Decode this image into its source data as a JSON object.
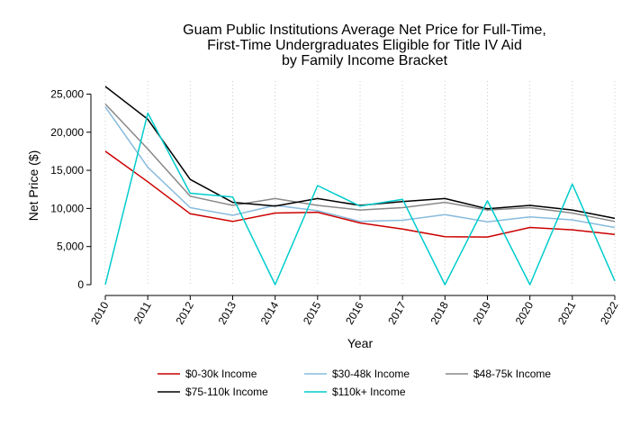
{
  "chart_data": {
    "type": "line",
    "title_lines": [
      "Guam Public Institutions Average Net Price for Full-Time,",
      "First-Time Undergraduates Eligible for Title IV Aid",
      "by Family Income Bracket"
    ],
    "xlabel": "Year",
    "ylabel": "Net Price ($)",
    "x": [
      "2010",
      "2011",
      "2012",
      "2013",
      "2014",
      "2015",
      "2016",
      "2017",
      "2018",
      "2019",
      "2020",
      "2021",
      "2022"
    ],
    "ylim": [
      0,
      26000
    ],
    "yticks": [
      0,
      5000,
      10000,
      15000,
      20000,
      25000
    ],
    "ytick_labels": [
      "0",
      "5,000",
      "10,000",
      "15,000",
      "20,000",
      "25,000"
    ],
    "grid": true,
    "legend_position": "bottom",
    "series": [
      {
        "name": "$0-30k Income",
        "color": "#cc0000",
        "values": [
          17500,
          13500,
          9300,
          8300,
          9400,
          9500,
          8100,
          7300,
          6300,
          6250,
          7500,
          7200,
          6600
        ]
      },
      {
        "name": "$30-48k Income",
        "color": "#88bbdd",
        "values": [
          23300,
          15400,
          10100,
          9100,
          10400,
          9700,
          8300,
          8450,
          9200,
          8250,
          8900,
          8500,
          7500
        ]
      },
      {
        "name": "$48-75k Income",
        "color": "#888888",
        "values": [
          23700,
          17800,
          11600,
          10400,
          11300,
          10400,
          9800,
          10100,
          10800,
          9800,
          10100,
          9400,
          8300
        ]
      },
      {
        "name": "$75-110k Income",
        "color": "#000000",
        "values": [
          26000,
          21700,
          13800,
          10800,
          10300,
          11300,
          10400,
          10900,
          11300,
          9950,
          10400,
          9800,
          8700
        ]
      },
      {
        "name": "$110k+ Income",
        "color": "#00cccc",
        "values": [
          0,
          22500,
          12000,
          11500,
          0,
          13000,
          10300,
          11200,
          0,
          11000,
          0,
          13200,
          500
        ]
      }
    ]
  }
}
